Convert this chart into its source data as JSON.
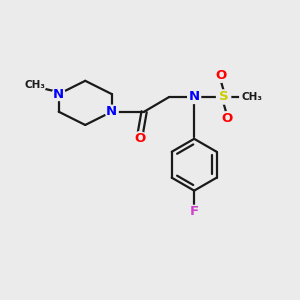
{
  "background_color": "#ebebeb",
  "bond_color": "#1a1a1a",
  "N_color": "#0000ff",
  "O_color": "#ff0000",
  "S_color": "#cccc00",
  "F_color": "#cc44cc",
  "figsize": [
    3.0,
    3.0
  ],
  "dpi": 100,
  "xlim": [
    0,
    10
  ],
  "ylim": [
    0,
    10
  ]
}
